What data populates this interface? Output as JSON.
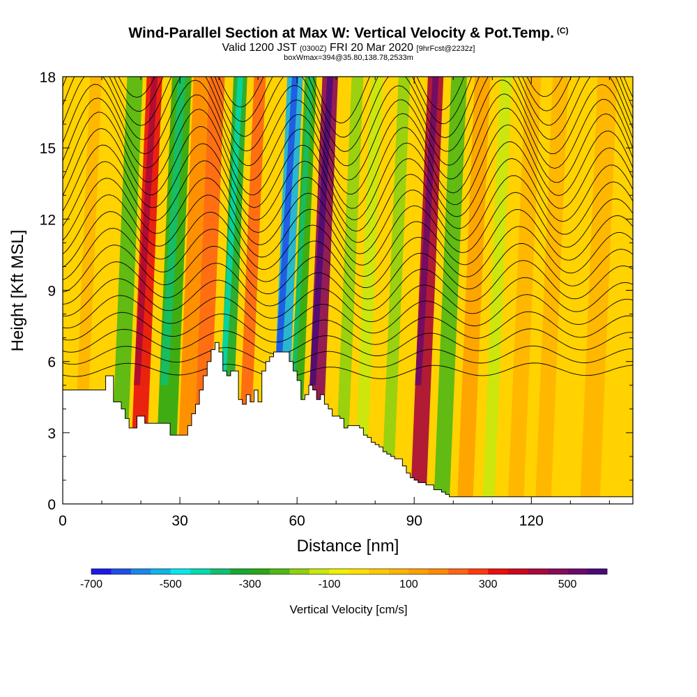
{
  "header": {
    "title": "Wind-Parallel Section at Max W: Vertical Velocity & Pot.Temp.",
    "title_tag": "(C)",
    "valid_prefix": "Valid 1200 JST",
    "valid_utc": "(0300Z)",
    "valid_date": "FRI 20 Mar 2020",
    "forecast": "[9hrFcst@2232z]",
    "boxwmax": "boxWmax=394@35.80,138.78,2533m"
  },
  "chart_data": {
    "type": "heatmap",
    "xlabel": "Distance [nm]",
    "ylabel": "Height [Kft MSL]",
    "xlim": [
      0,
      146
    ],
    "ylim": [
      0,
      18
    ],
    "x_ticks": [
      0,
      30,
      60,
      90,
      120
    ],
    "y_ticks": [
      0,
      3,
      6,
      9,
      12,
      15,
      18
    ],
    "colorbar": {
      "title": "Vertical Velocity [cm/s]",
      "min": -700,
      "step": 50,
      "labels": [
        "-700",
        "-500",
        "-300",
        "-100",
        "100",
        "300",
        "500"
      ],
      "colors": [
        "#1a1ae6",
        "#1f4fe8",
        "#1c86e8",
        "#12b4e6",
        "#08e8ea",
        "#00d9b0",
        "#10c070",
        "#1aa830",
        "#2aa814",
        "#50b814",
        "#90d010",
        "#c8e810",
        "#f0f000",
        "#ffe000",
        "#ffc800",
        "#ffb400",
        "#ffa000",
        "#ff8a00",
        "#ff6414",
        "#ff3a10",
        "#e81010",
        "#c80a1e",
        "#a8083a",
        "#880a5a",
        "#6a0a6a",
        "#4a0a7a"
      ]
    },
    "velocity_bands": [
      {
        "x": 4,
        "w": 3,
        "value": 80
      },
      {
        "x": 14,
        "w": 4,
        "value": -250
      },
      {
        "x": 19,
        "w": 4,
        "value": 300
      },
      {
        "x": 26,
        "w": 5,
        "value": -300
      },
      {
        "x": 31,
        "w": 4,
        "value": 150
      },
      {
        "x": 35,
        "w": 4,
        "value": 220
      },
      {
        "x": 41,
        "w": 3.5,
        "value": -350
      },
      {
        "x": 46,
        "w": 3,
        "value": 200
      },
      {
        "x": 55,
        "w": 4,
        "value": -550
      },
      {
        "x": 59,
        "w": 3,
        "value": -300
      },
      {
        "x": 64,
        "w": 4,
        "value": 450
      },
      {
        "x": 71,
        "w": 3,
        "value": -200
      },
      {
        "x": 76,
        "w": 3,
        "value": -150
      },
      {
        "x": 83,
        "w": 3,
        "value": -200
      },
      {
        "x": 91,
        "w": 4,
        "value": 420
      },
      {
        "x": 97,
        "w": 4,
        "value": -250
      },
      {
        "x": 103,
        "w": 4,
        "value": 100
      },
      {
        "x": 109,
        "w": 3,
        "value": -120
      },
      {
        "x": 116,
        "w": 4,
        "value": 80
      },
      {
        "x": 123,
        "w": 4,
        "value": 70
      },
      {
        "x": 135,
        "w": 5,
        "value": 60
      }
    ],
    "terrain_top_kft": [
      [
        0,
        4.8
      ],
      [
        10,
        4.8
      ],
      [
        11,
        5.4
      ],
      [
        12,
        5.4
      ],
      [
        13,
        4.3
      ],
      [
        15,
        4.0
      ],
      [
        16,
        3.6
      ],
      [
        17,
        3.2
      ],
      [
        18,
        3.2
      ],
      [
        19,
        3.7
      ],
      [
        20,
        3.7
      ],
      [
        21,
        3.4
      ],
      [
        27,
        3.4
      ],
      [
        27.5,
        2.9
      ],
      [
        31,
        2.9
      ],
      [
        32,
        3.3
      ],
      [
        33,
        3.8
      ],
      [
        34,
        4.2
      ],
      [
        35,
        4.8
      ],
      [
        36,
        5.4
      ],
      [
        37,
        6.0
      ],
      [
        38,
        6.5
      ],
      [
        39,
        6.8
      ],
      [
        40,
        6.4
      ],
      [
        41,
        5.6
      ],
      [
        42,
        5.4
      ],
      [
        43,
        5.6
      ],
      [
        44,
        5.6
      ],
      [
        45,
        4.4
      ],
      [
        46,
        4.2
      ],
      [
        47,
        4.6
      ],
      [
        48,
        4.3
      ],
      [
        49,
        4.8
      ],
      [
        50,
        4.3
      ],
      [
        51,
        5.6
      ],
      [
        52,
        6.0
      ],
      [
        53,
        6.2
      ],
      [
        54,
        6.4
      ],
      [
        57,
        6.4
      ],
      [
        58,
        6.0
      ],
      [
        59,
        5.6
      ],
      [
        60,
        5.2
      ],
      [
        61,
        4.4
      ],
      [
        62,
        4.6
      ],
      [
        63,
        5.0
      ],
      [
        64,
        4.8
      ],
      [
        65,
        4.4
      ],
      [
        66,
        4.6
      ],
      [
        67,
        4.2
      ],
      [
        68,
        4.0
      ],
      [
        69,
        3.7
      ],
      [
        70,
        3.7
      ],
      [
        71,
        3.6
      ],
      [
        72,
        3.2
      ],
      [
        73,
        3.3
      ],
      [
        76,
        3.2
      ],
      [
        77,
        2.9
      ],
      [
        78,
        2.8
      ],
      [
        79,
        2.6
      ],
      [
        80,
        2.5
      ],
      [
        81,
        2.4
      ],
      [
        82,
        2.2
      ],
      [
        83,
        2.1
      ],
      [
        84,
        2.0
      ],
      [
        85,
        1.9
      ],
      [
        86,
        1.9
      ],
      [
        87,
        1.6
      ],
      [
        88,
        1.3
      ],
      [
        89,
        1.1
      ],
      [
        90,
        1.0
      ],
      [
        91,
        0.9
      ],
      [
        93,
        0.8
      ],
      [
        95,
        0.6
      ],
      [
        97,
        0.5
      ],
      [
        98,
        0.4
      ],
      [
        99,
        0.3
      ],
      [
        146,
        0.3
      ]
    ]
  }
}
